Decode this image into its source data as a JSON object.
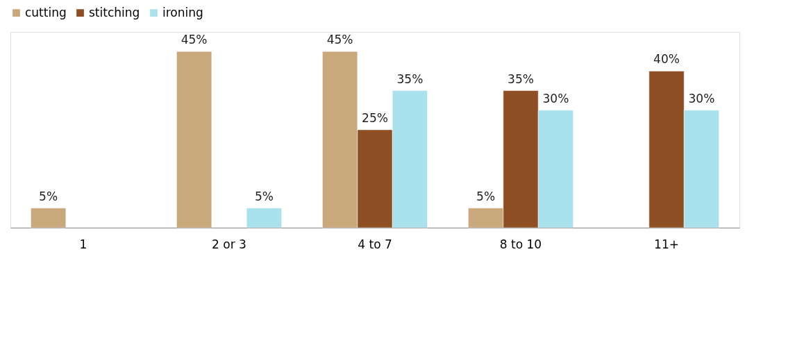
{
  "chart_data": {
    "type": "bar",
    "categories": [
      "1",
      "2 or 3",
      "4 to 7",
      "8 to 10",
      "11+"
    ],
    "series": [
      {
        "name": "cutting",
        "color": "#c9a97c",
        "values": [
          5,
          45,
          45,
          5,
          null
        ],
        "value_labels": [
          "5%",
          "45%",
          "45%",
          "5%",
          null
        ]
      },
      {
        "name": "stitching",
        "color": "#8e4f24",
        "values": [
          null,
          null,
          25,
          35,
          40
        ],
        "value_labels": [
          null,
          null,
          "25%",
          "35%",
          "40%"
        ]
      },
      {
        "name": "ironing",
        "color": "#a9e1ec",
        "values": [
          null,
          5,
          35,
          30,
          30
        ],
        "value_labels": [
          null,
          "5%",
          "35%",
          "30%",
          "30%"
        ]
      }
    ],
    "ylim": [
      0,
      50
    ],
    "relative": false,
    "grid": false,
    "legend": "top"
  }
}
